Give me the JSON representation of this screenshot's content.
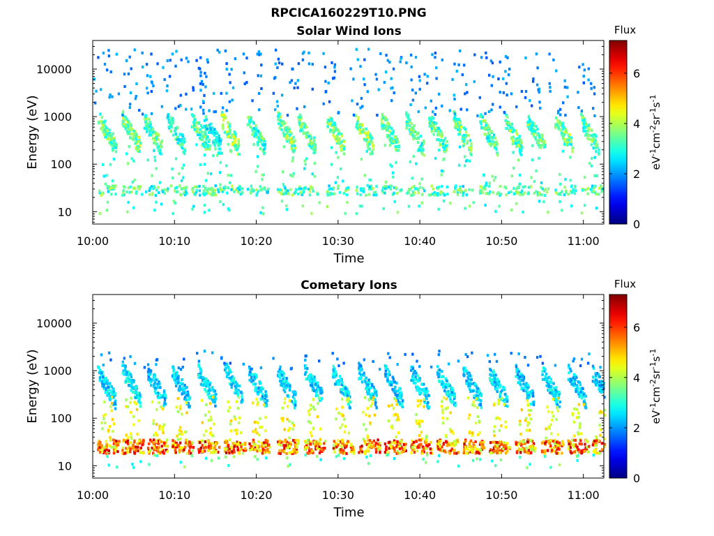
{
  "figure": {
    "title": "RPCICA160229T10.PNG"
  },
  "chart_data": [
    {
      "type": "heatmap",
      "title": "Solar Wind Ions",
      "xlabel": "Time",
      "ylabel": "Energy (eV)",
      "x_ticks": [
        "10:00",
        "10:10",
        "10:20",
        "10:30",
        "10:40",
        "10:50",
        "11:00"
      ],
      "x_range_minutes": [
        0,
        62.5
      ],
      "y_ticks": [
        "10",
        "100",
        "1000",
        "10000"
      ],
      "y_range_eV": [
        5.5,
        40000
      ],
      "y_scale": "log",
      "colorbar": {
        "label": "Flux",
        "unit": "eV-1cm-2sr-1s-1",
        "range": [
          0,
          7.3
        ],
        "ticks": [
          "0",
          "2",
          "4",
          "6"
        ],
        "colormap": "jet"
      },
      "pattern": {
        "bursts": [
          {
            "t": 0.6,
            "e": 320,
            "f": 3.6
          },
          {
            "t": 3.5,
            "e": 330,
            "f": 3.9
          },
          {
            "t": 6.2,
            "e": 300,
            "f": 3.6
          },
          {
            "t": 9.0,
            "e": 330,
            "f": 3.3
          },
          {
            "t": 12.0,
            "e": 320,
            "f": 3.6
          },
          {
            "t": 13.5,
            "e": 300,
            "f": 3.0
          },
          {
            "t": 15.6,
            "e": 320,
            "f": 4.0
          },
          {
            "t": 18.8,
            "e": 300,
            "f": 3.4
          },
          {
            "t": 22.5,
            "e": 320,
            "f": 3.8
          },
          {
            "t": 25.0,
            "e": 300,
            "f": 3.5
          },
          {
            "t": 28.5,
            "e": 320,
            "f": 3.8
          },
          {
            "t": 32.0,
            "e": 330,
            "f": 3.9
          },
          {
            "t": 35.2,
            "e": 310,
            "f": 3.7
          },
          {
            "t": 38.2,
            "e": 300,
            "f": 3.5
          },
          {
            "t": 41.0,
            "e": 310,
            "f": 3.6
          },
          {
            "t": 44.0,
            "e": 320,
            "f": 3.8
          },
          {
            "t": 47.2,
            "e": 300,
            "f": 3.5
          },
          {
            "t": 50.2,
            "e": 310,
            "f": 3.6
          },
          {
            "t": 53.0,
            "e": 320,
            "f": 3.6
          },
          {
            "t": 56.4,
            "e": 320,
            "f": 3.8
          },
          {
            "t": 59.6,
            "e": 300,
            "f": 3.6
          }
        ],
        "low_band_eV": [
          22,
          35
        ],
        "low_band_flux": 3.6
      }
    },
    {
      "type": "heatmap",
      "title": "Cometary Ions",
      "xlabel": "Time",
      "ylabel": "Energy (eV)",
      "x_ticks": [
        "10:00",
        "10:10",
        "10:20",
        "10:30",
        "10:40",
        "10:50",
        "11:00"
      ],
      "x_range_minutes": [
        0,
        62.5
      ],
      "y_ticks": [
        "10",
        "100",
        "1000",
        "10000"
      ],
      "y_range_eV": [
        5.5,
        40000
      ],
      "y_scale": "log",
      "colorbar": {
        "label": "Flux",
        "unit": "eV-1cm-2sr-1s-1",
        "range": [
          0,
          7.3
        ],
        "ticks": [
          "0",
          "2",
          "4",
          "6"
        ],
        "colormap": "jet"
      },
      "pattern": {
        "bursts": [
          {
            "t": 0.5,
            "e": 330,
            "f": 2.6
          },
          {
            "t": 3.5,
            "e": 380,
            "f": 2.8
          },
          {
            "t": 6.6,
            "e": 330,
            "f": 2.6
          },
          {
            "t": 9.6,
            "e": 330,
            "f": 2.5
          },
          {
            "t": 12.8,
            "e": 330,
            "f": 2.7
          },
          {
            "t": 16.0,
            "e": 380,
            "f": 2.8
          },
          {
            "t": 19.0,
            "e": 330,
            "f": 2.6
          },
          {
            "t": 22.5,
            "e": 330,
            "f": 2.7
          },
          {
            "t": 25.8,
            "e": 380,
            "f": 2.8
          },
          {
            "t": 29.2,
            "e": 330,
            "f": 2.7
          },
          {
            "t": 32.4,
            "e": 350,
            "f": 2.7
          },
          {
            "t": 35.6,
            "e": 330,
            "f": 2.6
          },
          {
            "t": 38.8,
            "e": 330,
            "f": 2.6
          },
          {
            "t": 42.0,
            "e": 350,
            "f": 2.7
          },
          {
            "t": 45.2,
            "e": 330,
            "f": 2.6
          },
          {
            "t": 48.4,
            "e": 330,
            "f": 2.7
          },
          {
            "t": 51.6,
            "e": 330,
            "f": 2.6
          },
          {
            "t": 54.8,
            "e": 330,
            "f": 2.7
          },
          {
            "t": 58.0,
            "e": 330,
            "f": 2.6
          },
          {
            "t": 61.0,
            "e": 320,
            "f": 2.5
          }
        ],
        "low_band_eV": [
          18,
          35
        ],
        "low_band_flux": 6.0
      }
    }
  ]
}
